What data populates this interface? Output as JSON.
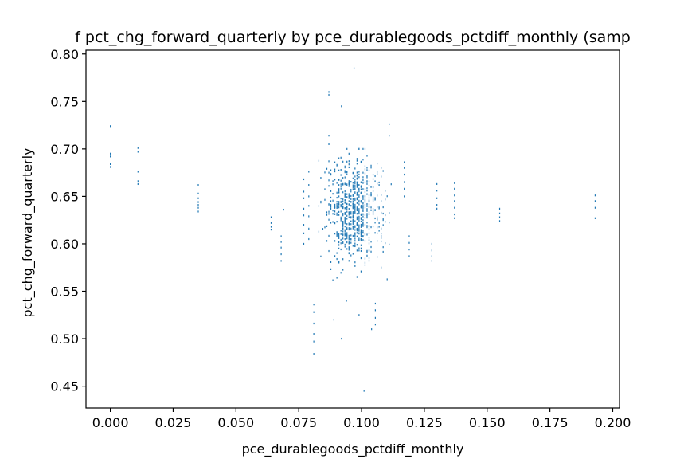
{
  "chart_data": {
    "type": "scatter",
    "title": "f pct_chg_forward_quarterly by pce_durablegoods_pctdiff_monthly (samp",
    "xlabel": "pce_durablegoods_pctdiff_monthly",
    "ylabel": "pct_chg_forward_quarterly",
    "xlim": [
      -0.0097,
      0.2027
    ],
    "ylim": [
      0.427,
      0.804
    ],
    "xticks": [
      "0.000",
      "0.025",
      "0.050",
      "0.075",
      "0.100",
      "0.125",
      "0.150",
      "0.175",
      "0.200"
    ],
    "yticks": [
      "0.45",
      "0.50",
      "0.55",
      "0.60",
      "0.65",
      "0.70",
      "0.75",
      "0.80"
    ],
    "grid": false,
    "marker_color": "#1f77b4",
    "clusters": [
      {
        "x": 0.0,
        "y_values": [
          0.724,
          0.695,
          0.692,
          0.684,
          0.681
        ]
      },
      {
        "x": 0.011,
        "y_values": [
          0.701,
          0.697,
          0.676,
          0.666,
          0.663
        ]
      },
      {
        "x": 0.035,
        "y_values": [
          0.662,
          0.653,
          0.648,
          0.644,
          0.641,
          0.638,
          0.634
        ]
      },
      {
        "x": 0.064,
        "y_values": [
          0.628,
          0.622,
          0.618,
          0.615
        ]
      },
      {
        "x": 0.068,
        "y_values": [
          0.608,
          0.602,
          0.596,
          0.589,
          0.582
        ]
      },
      {
        "x": 0.069,
        "y_values": [
          0.636
        ]
      },
      {
        "x": 0.077,
        "y_values": [
          0.668,
          0.655,
          0.648,
          0.637,
          0.63,
          0.62,
          0.611,
          0.6
        ]
      },
      {
        "x": 0.079,
        "y_values": [
          0.676,
          0.662,
          0.65,
          0.64,
          0.629,
          0.616,
          0.605
        ]
      },
      {
        "x": 0.081,
        "y_values": [
          0.536,
          0.528,
          0.516,
          0.505,
          0.497,
          0.484
        ]
      },
      {
        "x": 0.087,
        "y_values": [
          0.76,
          0.757,
          0.714,
          0.705,
          0.687,
          0.675
        ]
      },
      {
        "x": 0.1055,
        "y_values": [
          0.537,
          0.53,
          0.522,
          0.515
        ]
      },
      {
        "x": 0.111,
        "y_values": [
          0.726,
          0.714
        ]
      },
      {
        "x": 0.117,
        "y_values": [
          0.686,
          0.68,
          0.673,
          0.665,
          0.658,
          0.65
        ]
      },
      {
        "x": 0.119,
        "y_values": [
          0.608,
          0.601,
          0.594,
          0.587
        ]
      },
      {
        "x": 0.128,
        "y_values": [
          0.6,
          0.593,
          0.587,
          0.582
        ]
      },
      {
        "x": 0.13,
        "y_values": [
          0.663,
          0.656,
          0.648,
          0.641,
          0.637
        ]
      },
      {
        "x": 0.137,
        "y_values": [
          0.664,
          0.658,
          0.651,
          0.645,
          0.638,
          0.631,
          0.627
        ]
      },
      {
        "x": 0.155,
        "y_values": [
          0.637,
          0.632,
          0.628,
          0.624
        ]
      },
      {
        "x": 0.193,
        "y_values": [
          0.651,
          0.645,
          0.638,
          0.627
        ]
      }
    ],
    "dense_region": {
      "x_range": [
        0.083,
        0.112
      ],
      "y_range": [
        0.56,
        0.7
      ],
      "approx_points": 700
    },
    "outliers": [
      {
        "x": 0.097,
        "y": 0.785
      },
      {
        "x": 0.092,
        "y": 0.745
      },
      {
        "x": 0.092,
        "y": 0.5
      },
      {
        "x": 0.101,
        "y": 0.445
      },
      {
        "x": 0.099,
        "y": 0.525
      },
      {
        "x": 0.089,
        "y": 0.52
      },
      {
        "x": 0.094,
        "y": 0.54
      },
      {
        "x": 0.104,
        "y": 0.51
      }
    ]
  }
}
